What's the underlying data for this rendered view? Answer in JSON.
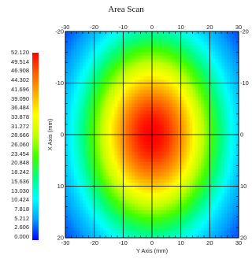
{
  "chart_data": {
    "type": "heatmap",
    "title": "Area Scan",
    "xlabel": "Y Axis (mm)",
    "ylabel": "X Axis (mm)",
    "x_ticks": [
      -30,
      -20,
      -10,
      0,
      10,
      20,
      30
    ],
    "y_ticks": [
      -20,
      -10,
      0,
      10,
      20
    ],
    "xlim": [
      -30,
      30
    ],
    "ylim": [
      -20,
      20
    ],
    "grid": true,
    "peak": {
      "x": 0,
      "y": 0,
      "value": 52.12
    },
    "value_range": [
      0,
      52.12
    ],
    "legend_values": [
      "52.120",
      "49.514",
      "46.908",
      "44.302",
      "41.696",
      "39.090",
      "36.484",
      "33.878",
      "31.272",
      "28.666",
      "26.060",
      "23.454",
      "20.848",
      "18.242",
      "15.636",
      "13.030",
      "10.424",
      "7.818",
      "5.212",
      "2.606",
      "0.000"
    ],
    "legend_placement": "left",
    "colormap": [
      "#0000ff",
      "#00a0ff",
      "#00ffff",
      "#00ff80",
      "#40ff00",
      "#c0ff00",
      "#ffff00",
      "#ffb000",
      "#ff6000",
      "#ff0000"
    ]
  }
}
